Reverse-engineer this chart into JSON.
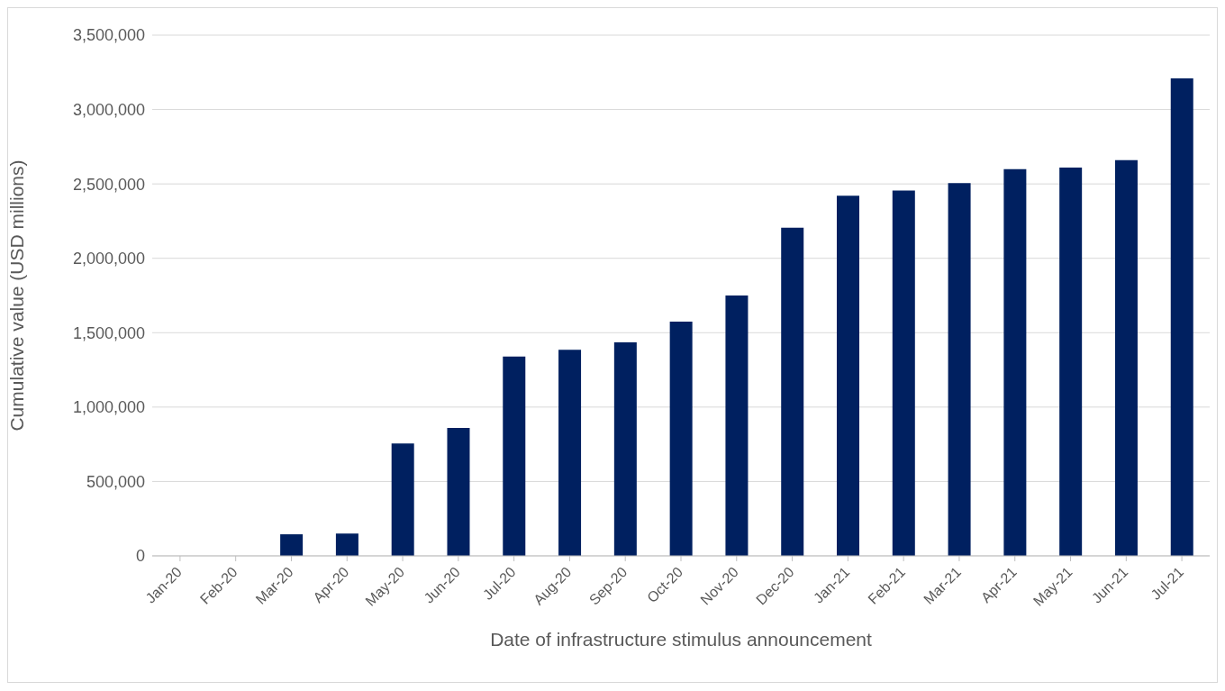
{
  "chart_data": {
    "type": "bar",
    "xlabel": "Date of infrastructure stimulus announcement",
    "ylabel": "Cumulative value (USD millions)",
    "categories": [
      "Jan-20",
      "Feb-20",
      "Mar-20",
      "Apr-20",
      "May-20",
      "Jun-20",
      "Jul-20",
      "Aug-20",
      "Sep-20",
      "Oct-20",
      "Nov-20",
      "Dec-20",
      "Jan-21",
      "Feb-21",
      "Mar-21",
      "Apr-21",
      "May-21",
      "Jun-21",
      "Jul-21"
    ],
    "values": [
      0,
      0,
      145000,
      150000,
      755000,
      860000,
      1340000,
      1385000,
      1435000,
      1575000,
      1750000,
      2205000,
      2420000,
      2455000,
      2505000,
      2600000,
      2610000,
      2660000,
      3210000
    ],
    "color": "#002060",
    "ylim": [
      0,
      3500000
    ],
    "yticks": [
      0,
      {
        "value": 500000,
        "label": "500,000"
      },
      {
        "value": 1000000,
        "label": "1,000,000"
      },
      {
        "value": 1500000,
        "label": "1,500,000"
      },
      {
        "value": 2000000,
        "label": "2,000,000"
      },
      {
        "value": 2500000,
        "label": "2,500,000"
      },
      {
        "value": 3000000,
        "label": "3,000,000"
      },
      {
        "value": 3500000,
        "label": "3,500,000"
      }
    ],
    "grid": "y",
    "legend": false
  }
}
